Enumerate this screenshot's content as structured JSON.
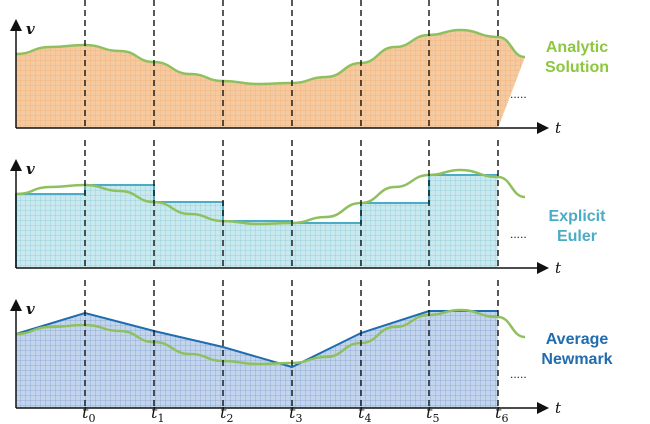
{
  "panels": [
    {
      "id": "analytic",
      "method_line1": "Analytic",
      "method_line2": "Solution",
      "color": "#8dc63f",
      "fill": "#f6caa0",
      "grid": "#ec9a52",
      "y_label": "v",
      "x_label": "t",
      "ellipsis": "....."
    },
    {
      "id": "euler",
      "method_line1": "Explicit",
      "method_line2": "Euler",
      "color": "#4bacc6",
      "fill": "#c9e9ef",
      "grid": "#59b4c7",
      "y_label": "v",
      "x_label": "t",
      "ellipsis": "....."
    },
    {
      "id": "newmark",
      "method_line1": "Average",
      "method_line2": "Newmark",
      "color": "#1f6cb0",
      "fill": "#c3d5ec",
      "grid": "#4a78b8",
      "y_label": "v",
      "x_label": "t",
      "ellipsis": "....."
    }
  ],
  "time_labels": [
    {
      "base": "t",
      "sub": "0"
    },
    {
      "base": "t",
      "sub": "1"
    },
    {
      "base": "t",
      "sub": "2"
    },
    {
      "base": "t",
      "sub": "3"
    },
    {
      "base": "t",
      "sub": "4"
    },
    {
      "base": "t",
      "sub": "5"
    },
    {
      "base": "t",
      "sub": "6"
    }
  ],
  "curve_color": "#8fc060"
}
